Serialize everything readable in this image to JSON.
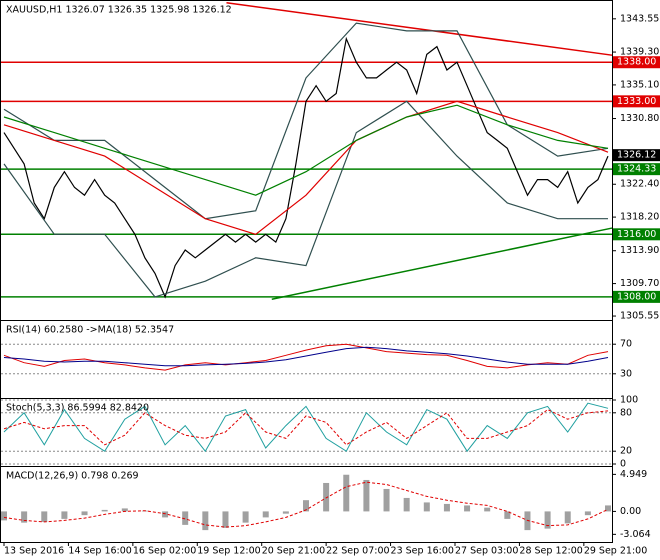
{
  "chart_data": [
    {
      "type": "line",
      "title": "XAUUSD,H1  1326.07 1326.35 1325.98 1326.12",
      "xlim": [
        0,
        60
      ],
      "xticks": [
        {
          "value": 0,
          "label": "13 Sep 2016"
        },
        {
          "value": 6.4,
          "label": "14 Sep 16:00"
        },
        {
          "value": 12.8,
          "label": "16 Sep 02:00"
        },
        {
          "value": 19.2,
          "label": "19 Sep 12:00"
        },
        {
          "value": 25.6,
          "label": "20 Sep 21:00"
        },
        {
          "value": 32,
          "label": "22 Sep 07:00"
        },
        {
          "value": 38.4,
          "label": "23 Sep 16:00"
        },
        {
          "value": 44.8,
          "label": "27 Sep 03:00"
        },
        {
          "value": 51.2,
          "label": "28 Sep 12:00"
        },
        {
          "value": 57.6,
          "label": "29 Sep 21:00"
        }
      ],
      "ylim": [
        1305.3,
        1345.7
      ],
      "yticks": [
        1343.55,
        {
          "value": 1339.3,
          "label": "1339.30"
        },
        {
          "value": 1335.1,
          "label": "1335.10"
        },
        {
          "value": 1330.8,
          "label": "1330.80"
        },
        {
          "value": 1322.4,
          "label": "1322.40"
        },
        {
          "value": 1318.2,
          "label": "1318.20"
        },
        {
          "value": 1313.9,
          "label": "1313.90"
        },
        {
          "value": 1309.7,
          "label": "1309.70"
        },
        1305.55
      ],
      "x": [
        0,
        1,
        2,
        3,
        4,
        5,
        6,
        7,
        8,
        9,
        10,
        11,
        12,
        13,
        14,
        15,
        16,
        17,
        18,
        19,
        20,
        21,
        22,
        23,
        24,
        25,
        26,
        27,
        28,
        29,
        30,
        31,
        32,
        33,
        34,
        35,
        36,
        37,
        38,
        39,
        40,
        41,
        42,
        43,
        44,
        45,
        46,
        47,
        48,
        49,
        50,
        51,
        52,
        53,
        54,
        55,
        56,
        57,
        58,
        59,
        60
      ],
      "series": [
        {
          "color": "#000000",
          "values": [
            1329,
            1327,
            1325,
            1320,
            1318,
            1322,
            1324,
            1322,
            1321,
            1323,
            1321,
            1320,
            1318,
            1316,
            1313,
            1311,
            1308,
            1312,
            1314,
            1313,
            1314,
            1315,
            1316,
            1315,
            1316,
            1315,
            1316,
            1315,
            1318,
            1325,
            1333,
            1335,
            1333,
            1334,
            1341,
            1338,
            1336,
            1336,
            1337,
            1338,
            1337,
            1334,
            1339,
            1340,
            1337,
            1338,
            1335,
            1332,
            1329,
            1328,
            1327,
            1324,
            1321,
            1323,
            1323,
            1322,
            1324,
            1320,
            1322,
            1323,
            1326
          ]
        },
        {
          "color": "#2f4f4f",
          "x": [
            0,
            5,
            10,
            15,
            20,
            25,
            30,
            35,
            40,
            45,
            50,
            55,
            60
          ],
          "values": [
            1332,
            1328,
            1328,
            1323,
            1318,
            1319,
            1336,
            1343,
            1342,
            1342,
            1330,
            1326,
            1327
          ]
        },
        {
          "color": "#2f4f4f",
          "x": [
            0,
            5,
            10,
            15,
            20,
            25,
            30,
            35,
            40,
            45,
            50,
            55,
            60
          ],
          "values": [
            1325,
            1316,
            1316,
            1308,
            1310,
            1313,
            1312,
            1329,
            1333,
            1326,
            1320,
            1318,
            1318
          ]
        },
        {
          "color": "#e00000",
          "x": [
            0,
            5,
            10,
            15,
            20,
            25,
            30,
            35,
            40,
            45,
            50,
            55,
            60
          ],
          "values": [
            1330,
            1328,
            1326,
            1322,
            1318,
            1316,
            1321,
            1328,
            1331,
            1333,
            1331,
            1329,
            1326.5
          ]
        },
        {
          "color": "#008000",
          "x": [
            0,
            5,
            10,
            15,
            20,
            25,
            30,
            35,
            40,
            45,
            50,
            55,
            60
          ],
          "values": [
            1331,
            1329,
            1327,
            1325,
            1323,
            1321,
            1324,
            1328,
            1331,
            1332.5,
            1330,
            1328,
            1327
          ]
        }
      ],
      "trendlines": [
        {
          "color": "#e00000",
          "x": [
            22.1,
            60.4
          ],
          "values": [
            1345.6,
            1338.9
          ]
        },
        {
          "color": "#008000",
          "x": [
            26.6,
            60.4
          ],
          "values": [
            1307.7,
            1316.8
          ]
        }
      ],
      "levels": [
        {
          "value": 1338,
          "label": "1338.00",
          "color": "#e00000"
        },
        {
          "value": 1333,
          "label": "1333.00",
          "color": "#e00000"
        },
        {
          "value": 1324.33,
          "label": "1324.33",
          "color": "#008000"
        },
        {
          "value": 1316,
          "label": "1316.00",
          "color": "#008000"
        },
        {
          "value": 1308,
          "label": "1308.00",
          "color": "#008000"
        }
      ],
      "current_price": {
        "value": 1326.12,
        "label": "1326.12",
        "color": "#000000"
      }
    },
    {
      "type": "line",
      "title": "RSI(14) 60.2580  ->MA(18) 52.3547",
      "ylim": [
        0,
        100
      ],
      "yticks": [
        70,
        30
      ],
      "grid": true,
      "x": [
        0,
        2,
        4,
        6,
        8,
        10,
        12,
        14,
        16,
        18,
        20,
        22,
        24,
        26,
        28,
        30,
        32,
        34,
        36,
        38,
        40,
        42,
        44,
        46,
        48,
        50,
        52,
        54,
        56,
        58,
        60
      ],
      "series": [
        {
          "color": "#e00000",
          "values": [
            55,
            45,
            40,
            48,
            50,
            45,
            42,
            38,
            35,
            42,
            45,
            42,
            45,
            48,
            55,
            62,
            68,
            70,
            65,
            60,
            58,
            56,
            55,
            48,
            40,
            38,
            42,
            45,
            43,
            55,
            60
          ]
        },
        {
          "color": "#00008b",
          "values": [
            52,
            50,
            47,
            46,
            47,
            47,
            45,
            43,
            41,
            41,
            42,
            43,
            44,
            46,
            49,
            54,
            59,
            64,
            66,
            64,
            61,
            59,
            57,
            54,
            50,
            46,
            43,
            43,
            43,
            47,
            52
          ]
        }
      ]
    },
    {
      "type": "line",
      "title": "Stoch(5,3,3) 86.5994 82.8420",
      "ylim": [
        0,
        100
      ],
      "yticks": [
        100,
        80,
        20,
        0
      ],
      "grid": true,
      "x": [
        0,
        2,
        4,
        6,
        8,
        10,
        12,
        14,
        16,
        18,
        20,
        22,
        24,
        26,
        28,
        30,
        32,
        34,
        36,
        38,
        40,
        42,
        44,
        46,
        48,
        50,
        52,
        54,
        56,
        58,
        60
      ],
      "series": [
        {
          "color": "#20a0a0",
          "values": [
            50,
            80,
            30,
            85,
            40,
            20,
            70,
            90,
            30,
            60,
            20,
            75,
            85,
            25,
            60,
            90,
            40,
            20,
            80,
            50,
            30,
            85,
            70,
            20,
            60,
            40,
            80,
            90,
            50,
            95,
            87
          ]
        },
        {
          "color": "#e00000",
          "style": "dashed",
          "values": [
            55,
            65,
            55,
            60,
            60,
            30,
            45,
            80,
            60,
            45,
            40,
            50,
            80,
            50,
            40,
            75,
            65,
            30,
            50,
            65,
            40,
            60,
            80,
            40,
            40,
            50,
            60,
            85,
            70,
            80,
            83
          ]
        }
      ]
    },
    {
      "type": "line",
      "title": "MACD(12,26,9) 0.798 0.269",
      "ylim": [
        -3.82,
        5.8
      ],
      "yticks": [
        4.949,
        {
          "value": 0,
          "label": "0.00"
        },
        -3.064
      ],
      "x": [
        0,
        2,
        4,
        6,
        8,
        10,
        12,
        14,
        16,
        18,
        20,
        22,
        24,
        26,
        28,
        30,
        32,
        34,
        36,
        38,
        40,
        42,
        44,
        46,
        48,
        50,
        52,
        54,
        56,
        58,
        60
      ],
      "series": [
        {
          "color": "#a0a0a0",
          "style": "histogram",
          "values": [
            -1.2,
            -1.5,
            -1.4,
            -1.0,
            -0.5,
            0.2,
            0.4,
            0.1,
            -0.8,
            -1.8,
            -2.5,
            -2.2,
            -1.5,
            -0.8,
            -0.3,
            1.5,
            3.8,
            4.9,
            4.2,
            3.0,
            1.8,
            1.2,
            1.0,
            0.8,
            0.5,
            -1.0,
            -2.5,
            -2.3,
            -1.6,
            -0.5,
            0.8
          ]
        },
        {
          "color": "#e00000",
          "style": "dashed",
          "values": [
            -0.8,
            -1.2,
            -1.4,
            -1.2,
            -0.9,
            -0.4,
            0,
            0.1,
            -0.3,
            -1.0,
            -1.8,
            -2.1,
            -1.9,
            -1.4,
            -0.8,
            0.2,
            1.8,
            3.3,
            3.9,
            3.6,
            2.8,
            2.0,
            1.5,
            1.1,
            0.8,
            0,
            -1.2,
            -1.9,
            -1.8,
            -1.0,
            0.27
          ]
        }
      ]
    }
  ]
}
